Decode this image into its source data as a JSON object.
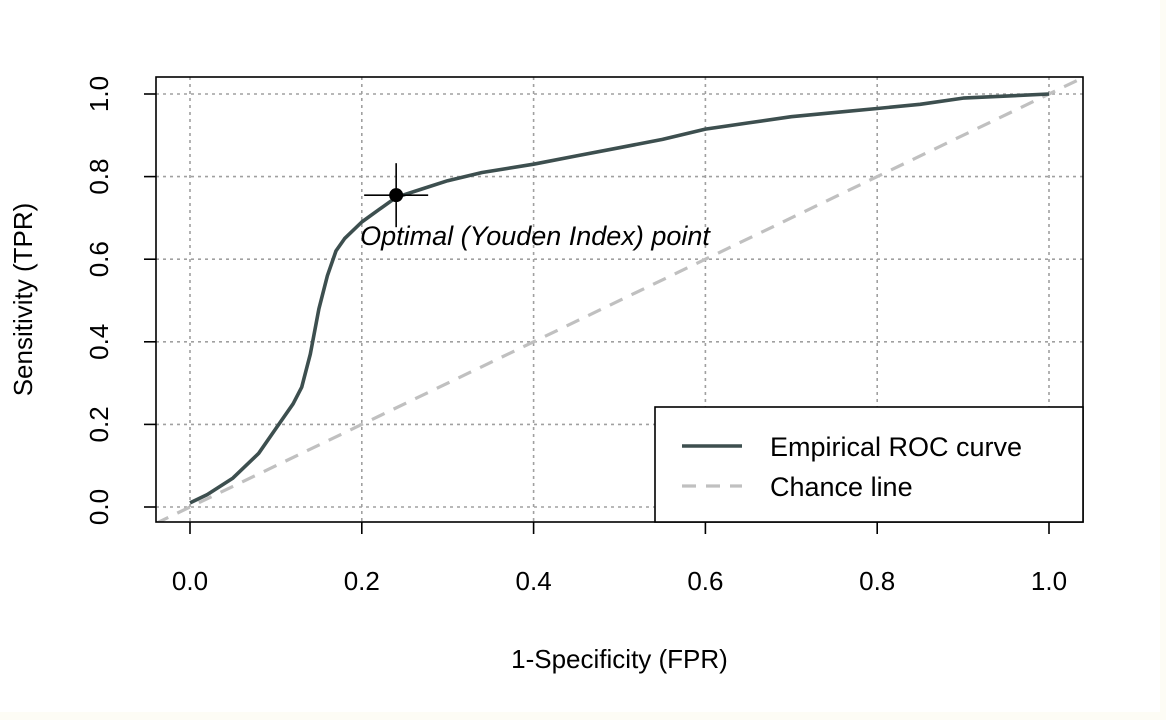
{
  "chart_data": {
    "type": "line",
    "title": "",
    "xlabel": "1-Specificity (FPR)",
    "ylabel": "Sensitivity (TPR)",
    "xlim": [
      0.0,
      1.0
    ],
    "ylim": [
      0.0,
      1.0
    ],
    "x_ticks": [
      "0.0",
      "0.2",
      "0.4",
      "0.6",
      "0.8",
      "1.0"
    ],
    "y_ticks": [
      "0.0",
      "0.2",
      "0.4",
      "0.6",
      "0.8",
      "1.0"
    ],
    "grid": true,
    "legend_position": "bottom-right",
    "series": [
      {
        "name": "Empirical ROC curve",
        "color": "#3d4f4f",
        "style": "solid",
        "x": [
          0.0,
          0.02,
          0.05,
          0.08,
          0.1,
          0.12,
          0.13,
          0.14,
          0.15,
          0.16,
          0.17,
          0.18,
          0.2,
          0.22,
          0.24,
          0.27,
          0.3,
          0.34,
          0.4,
          0.45,
          0.5,
          0.55,
          0.6,
          0.65,
          0.7,
          0.75,
          0.8,
          0.85,
          0.9,
          0.95,
          1.0
        ],
        "y": [
          0.01,
          0.03,
          0.07,
          0.13,
          0.19,
          0.25,
          0.29,
          0.37,
          0.48,
          0.56,
          0.62,
          0.65,
          0.69,
          0.72,
          0.75,
          0.77,
          0.79,
          0.81,
          0.83,
          0.85,
          0.87,
          0.89,
          0.915,
          0.93,
          0.945,
          0.955,
          0.965,
          0.975,
          0.99,
          0.995,
          1.0
        ]
      },
      {
        "name": "Chance line",
        "color": "#c0c0c0",
        "style": "dashed",
        "x": [
          -0.04,
          1.04
        ],
        "y": [
          -0.04,
          1.04
        ]
      }
    ],
    "annotations": [
      {
        "text": "Optimal (Youden Index) point",
        "x": 0.24,
        "y": 0.755
      }
    ]
  }
}
